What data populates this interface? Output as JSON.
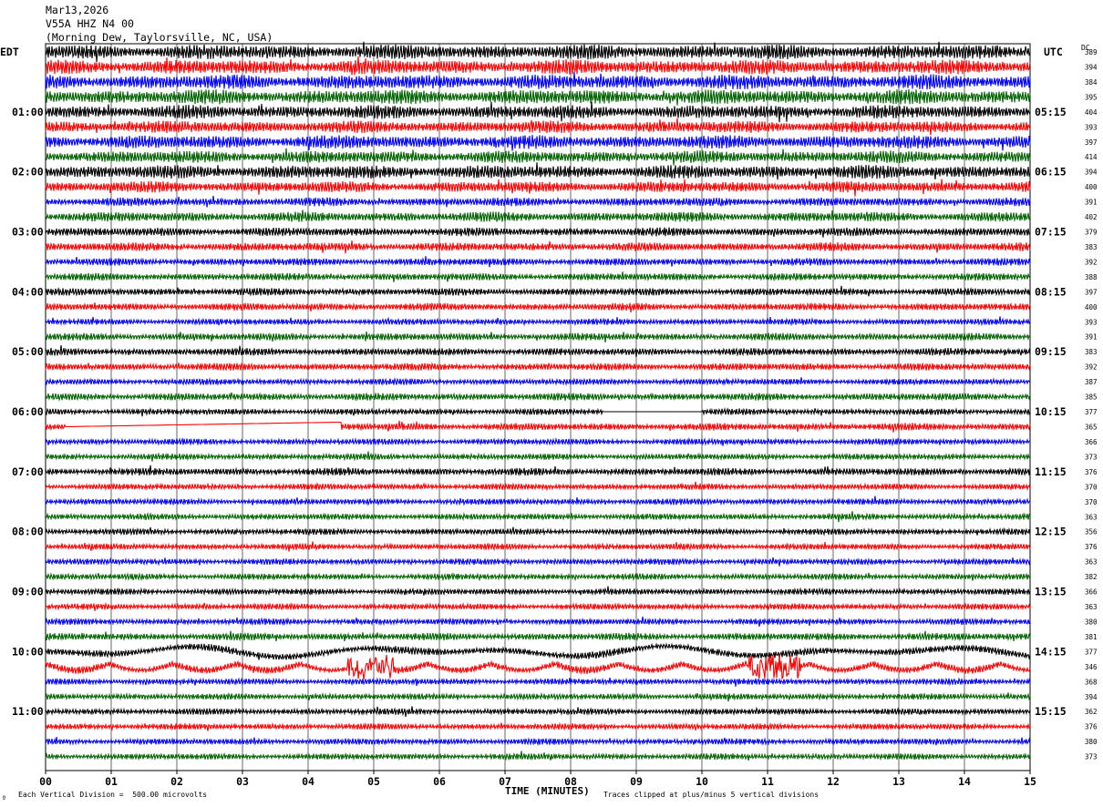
{
  "header": {
    "date": "Mar13,2026",
    "channel": "V55A HHZ N4 00",
    "location": "(Morning Dew, Taylorsville, NC, USA)"
  },
  "labels": {
    "left_tz": "EDT",
    "right_tz": "UTC",
    "dc_header": "DC",
    "xlabel": "TIME (MINUTES)",
    "footer_left": "Each Vertical Division =  500.00 microvolts",
    "footer_right": "Traces clipped at plus/minus 5 vertical divisions",
    "corner_mark": "º"
  },
  "colors": {
    "black": "#000000",
    "red": "#ff0000",
    "blue": "#0000ff",
    "green": "#006400",
    "grid": "#000000"
  },
  "chart_data": {
    "type": "line",
    "title": "",
    "xlabel": "TIME (MINUTES)",
    "x_ticks": [
      "00",
      "01",
      "02",
      "03",
      "04",
      "05",
      "06",
      "07",
      "08",
      "09",
      "10",
      "11",
      "12",
      "13",
      "14",
      "15"
    ],
    "xlim": [
      0,
      15
    ],
    "trace_minutes": 15,
    "trace_colors": [
      "black",
      "red",
      "blue",
      "green"
    ],
    "left_time_labels": [
      "01:00",
      "02:00",
      "03:00",
      "04:00",
      "05:00",
      "06:00",
      "07:00",
      "08:00",
      "09:00",
      "10:00",
      "11:00"
    ],
    "right_time_labels": [
      "05:15",
      "06:15",
      "07:15",
      "08:15",
      "09:15",
      "10:15",
      "11:15",
      "12:15",
      "13:15",
      "14:15",
      "15:15"
    ],
    "dc_offsets": [
      389,
      394,
      384,
      395,
      404,
      393,
      397,
      414,
      394,
      400,
      391,
      402,
      379,
      383,
      392,
      388,
      397,
      400,
      393,
      391,
      383,
      392,
      387,
      385,
      377,
      365,
      366,
      373,
      376,
      370,
      370,
      363,
      356,
      376,
      363,
      382,
      366,
      363,
      380,
      381,
      377,
      346,
      368,
      394,
      362,
      376,
      380,
      373
    ],
    "amplitude_profile": [
      6,
      6,
      6,
      6,
      5.5,
      5,
      5.5,
      5,
      5.5,
      4.5,
      3.5,
      4,
      3.5,
      3.5,
      3,
      3,
      3,
      3,
      2.5,
      3,
      3,
      3,
      2.5,
      3,
      2.5,
      3,
      2.5,
      2.5,
      3,
      2.5,
      2.5,
      2.5,
      2.5,
      2.5,
      2.5,
      2.5,
      2.5,
      2.5,
      2.5,
      3,
      3,
      3,
      2.5,
      2.5,
      2.5,
      2.5,
      2.5,
      2.5
    ],
    "events": [
      {
        "trace": 41,
        "start_min": 4.6,
        "end_min": 5.3,
        "label": ""
      },
      {
        "trace": 41,
        "start_min": 10.7,
        "end_min": 11.5,
        "label": ""
      }
    ],
    "gaps": [
      {
        "trace": 24,
        "start_min": 8.5,
        "end_min": 10.0
      },
      {
        "trace": 25,
        "start_min": 0.3,
        "end_min": 4.5
      }
    ]
  }
}
